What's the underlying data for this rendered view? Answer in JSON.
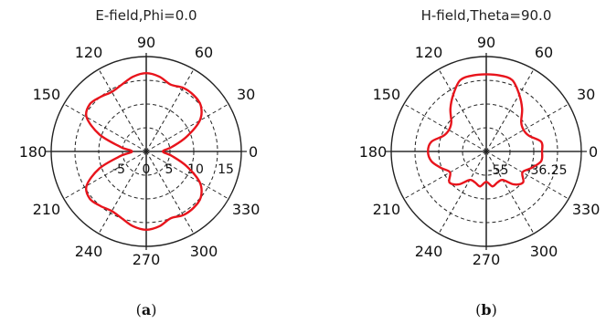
{
  "chart_data": [
    {
      "type": "polar-line",
      "title": "E-field,Phi=0.0",
      "caption_letter": "a",
      "angle_ticks": [
        "0",
        "30",
        "60",
        "90",
        "120",
        "150",
        "180",
        "210",
        "240",
        "270",
        "300",
        "330"
      ],
      "radial_ticks": [
        "-5",
        "0",
        "5",
        "10",
        "15"
      ],
      "rlim": [
        -5,
        15
      ],
      "color": "#e8141c",
      "series": [
        {
          "theta_deg": [
            0,
            10,
            20,
            30,
            40,
            50,
            60,
            70,
            80,
            90,
            100,
            110,
            120,
            130,
            140,
            150,
            160,
            170,
            180,
            190,
            200,
            210,
            220,
            230,
            240,
            250,
            260,
            270,
            280,
            290,
            300,
            310,
            320,
            330,
            340,
            350
          ],
          "r": [
            -1.5,
            0.5,
            4,
            8,
            10,
            10.5,
            10.5,
            10,
            11,
            11.5,
            11,
            10,
            9.5,
            10,
            10.5,
            9.5,
            5.5,
            0.5,
            -2,
            0.5,
            5.5,
            9.5,
            10.5,
            10,
            9.5,
            10,
            11,
            11.5,
            11,
            10,
            10.5,
            10.5,
            10,
            8,
            4,
            0.5
          ]
        }
      ]
    },
    {
      "type": "polar-line",
      "title": "H-field,Theta=90.0",
      "caption_letter": "b",
      "angle_ticks": [
        "0",
        "30",
        "60",
        "90",
        "120",
        "150",
        "180",
        "210",
        "240",
        "270",
        "300",
        "330"
      ],
      "radial_ticks": [
        "-55",
        "-36.25"
      ],
      "rlim": [
        -55,
        -17.5
      ],
      "color": "#e8141c",
      "series": [
        {
          "theta_deg": [
            0,
            10,
            20,
            30,
            40,
            50,
            60,
            70,
            80,
            90,
            100,
            110,
            120,
            130,
            140,
            150,
            160,
            170,
            180,
            190,
            200,
            210,
            220,
            230,
            240,
            250,
            260,
            270,
            280,
            290,
            300,
            310,
            320,
            330,
            340,
            350
          ],
          "r": [
            -33,
            -33,
            -37,
            -38,
            -37,
            -33,
            -29,
            -25,
            -24.5,
            -24.5,
            -24.5,
            -25,
            -29,
            -33,
            -37,
            -38,
            -37,
            -33,
            -32,
            -33,
            -36,
            -38.5,
            -36,
            -38,
            -42,
            -42,
            -41,
            -43,
            -41,
            -42,
            -42,
            -38,
            -36,
            -38.5,
            -36,
            -33
          ]
        }
      ]
    }
  ],
  "captions": [
    {
      "open": "(",
      "letter": "a",
      "close": ")"
    },
    {
      "open": "(",
      "letter": "b",
      "close": ")"
    }
  ]
}
